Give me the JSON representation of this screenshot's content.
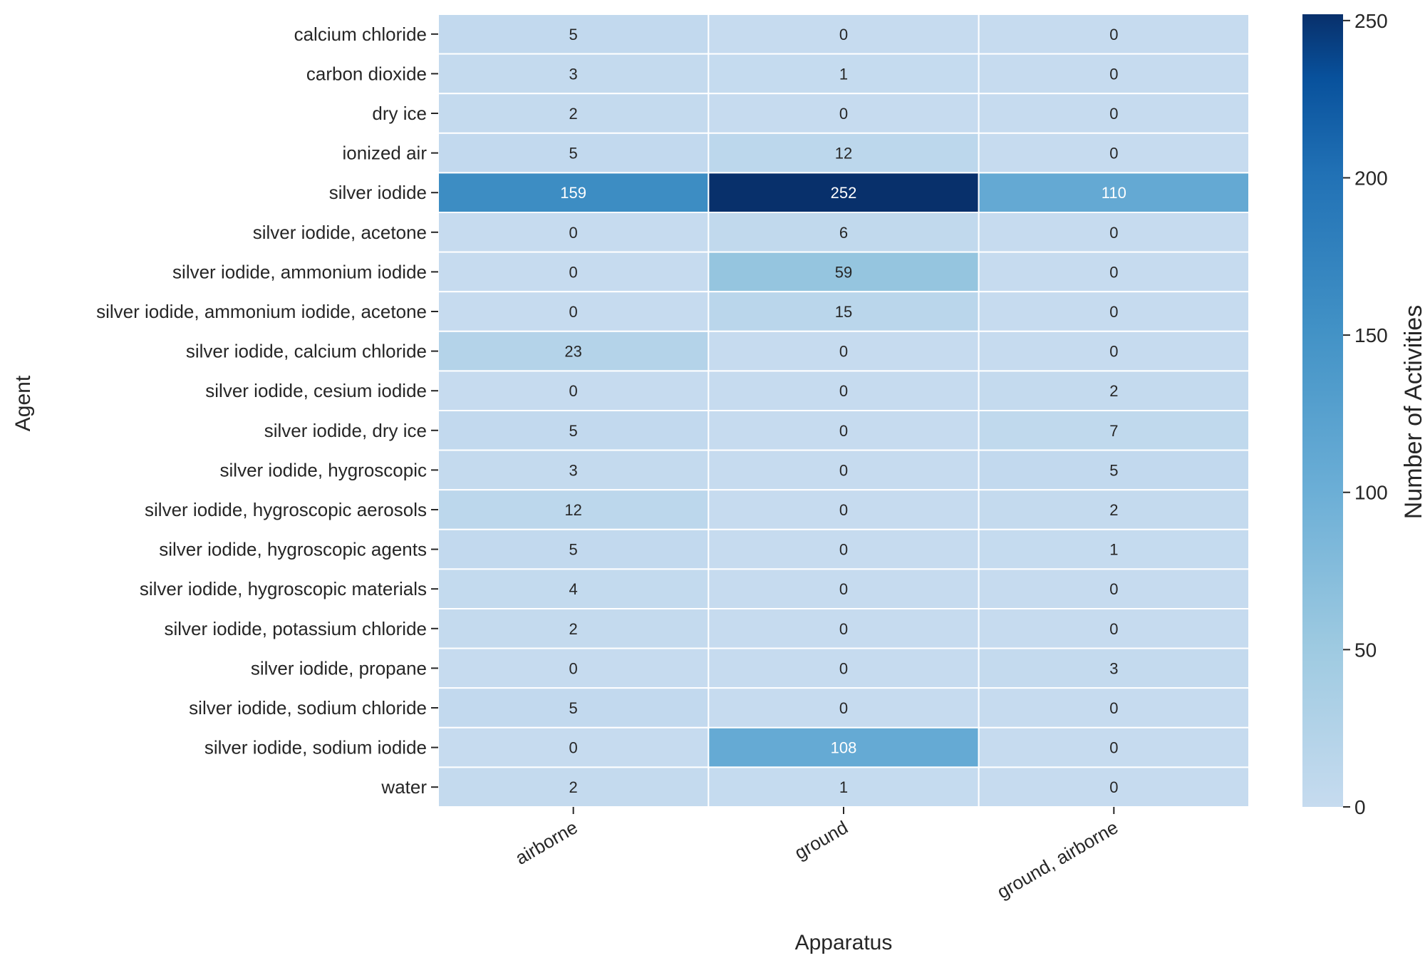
{
  "chart_data": {
    "type": "heatmap",
    "title": "",
    "xlabel": "Apparatus",
    "ylabel": "Agent",
    "colorbar_label": "Number of Activities",
    "colorbar_ticks": [
      0,
      50,
      100,
      150,
      200,
      250
    ],
    "vmin": 0,
    "vmax": 252,
    "colormap": "Blues",
    "x_categories": [
      "airborne",
      "ground",
      "ground, airborne"
    ],
    "y_categories": [
      "calcium chloride",
      "carbon dioxide",
      "dry ice",
      "ionized air",
      "silver iodide",
      "silver iodide, acetone",
      "silver iodide, ammonium iodide",
      "silver iodide, ammonium iodide, acetone",
      "silver iodide, calcium chloride",
      "silver iodide, cesium iodide",
      "silver iodide, dry ice",
      "silver iodide, hygroscopic",
      "silver iodide, hygroscopic aerosols",
      "silver iodide, hygroscopic agents",
      "silver iodide, hygroscopic materials",
      "silver iodide, potassium chloride",
      "silver iodide, propane",
      "silver iodide, sodium chloride",
      "silver iodide, sodium iodide",
      "water"
    ],
    "values": [
      [
        5,
        0,
        0
      ],
      [
        3,
        1,
        0
      ],
      [
        2,
        0,
        0
      ],
      [
        5,
        12,
        0
      ],
      [
        159,
        252,
        110
      ],
      [
        0,
        6,
        0
      ],
      [
        0,
        59,
        0
      ],
      [
        0,
        15,
        0
      ],
      [
        23,
        0,
        0
      ],
      [
        0,
        0,
        2
      ],
      [
        5,
        0,
        7
      ],
      [
        3,
        0,
        5
      ],
      [
        12,
        0,
        2
      ],
      [
        5,
        0,
        1
      ],
      [
        4,
        0,
        0
      ],
      [
        2,
        0,
        0
      ],
      [
        0,
        0,
        3
      ],
      [
        5,
        0,
        0
      ],
      [
        0,
        108,
        0
      ],
      [
        2,
        1,
        0
      ]
    ]
  }
}
